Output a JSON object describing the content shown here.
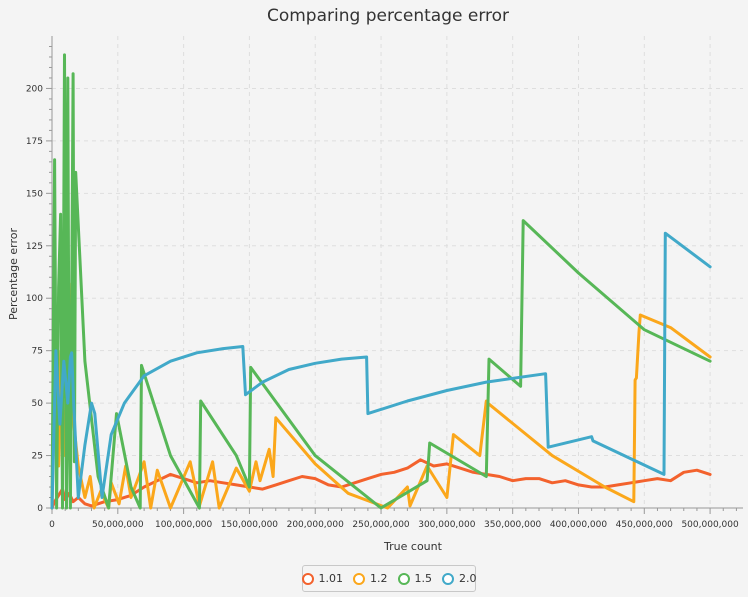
{
  "chart_data": {
    "type": "line",
    "title": "Comparing percentage error",
    "xlabel": "True count",
    "ylabel": "Percentage  error",
    "xlim": [
      0,
      525000000
    ],
    "ylim": [
      0,
      225
    ],
    "x_ticks": [
      0,
      50000000,
      100000000,
      150000000,
      200000000,
      250000000,
      300000000,
      350000000,
      400000000,
      450000000,
      500000000
    ],
    "x_tick_labels": [
      "0",
      "50,000,000",
      "100,000,000",
      "150,000,000",
      "200,000,000",
      "250,000,000",
      "300,000,000",
      "350,000,000",
      "400,000,000",
      "450,000,000",
      "500,000,000"
    ],
    "y_ticks": [
      0,
      25,
      50,
      75,
      100,
      125,
      150,
      175,
      200
    ],
    "y_tick_labels": [
      "0",
      "25",
      "50",
      "75",
      "100",
      "125",
      "150",
      "175",
      "200"
    ],
    "grid": true,
    "legend_position": "bottom",
    "series": [
      {
        "name": "1.01",
        "color": "#f3622d",
        "x": [
          0,
          2000000,
          5000000,
          8000000,
          10000000,
          13000000,
          16000000,
          20000000,
          25000000,
          30000000,
          40000000,
          50000000,
          60000000,
          70000000,
          80000000,
          90000000,
          100000000,
          110000000,
          120000000,
          130000000,
          140000000,
          150000000,
          160000000,
          170000000,
          180000000,
          190000000,
          200000000,
          210000000,
          220000000,
          230000000,
          240000000,
          250000000,
          260000000,
          270000000,
          280000000,
          290000000,
          300000000,
          310000000,
          320000000,
          330000000,
          340000000,
          350000000,
          360000000,
          370000000,
          380000000,
          390000000,
          400000000,
          410000000,
          420000000,
          430000000,
          440000000,
          450000000,
          460000000,
          470000000,
          480000000,
          490000000,
          500000000
        ],
        "y": [
          0,
          3,
          6,
          9,
          4,
          7,
          3,
          5,
          2,
          1,
          3,
          4,
          6,
          10,
          13,
          16,
          14,
          12,
          13,
          12,
          11,
          10,
          9,
          11,
          13,
          15,
          14,
          11,
          10,
          12,
          14,
          16,
          17,
          19,
          23,
          20,
          21,
          19,
          17,
          16,
          15,
          13,
          14,
          14,
          12,
          13,
          11,
          10,
          10,
          11,
          12,
          13,
          14,
          13,
          17,
          18,
          16
        ]
      },
      {
        "name": "1.2",
        "color": "#fba71b",
        "x": [
          0,
          2000000,
          5000000,
          7000000,
          9000000,
          11000000,
          13000000,
          15000000,
          16500000,
          20000000,
          25000000,
          29000000,
          32000000,
          37000000,
          43000000,
          45000000,
          51000000,
          56000000,
          60000000,
          66000000,
          70000000,
          75000000,
          80000000,
          90000000,
          105000000,
          112000000,
          122000000,
          127000000,
          140000000,
          150000000,
          155000000,
          158000000,
          165000000,
          168000000,
          170000000,
          200000000,
          225000000,
          255000000,
          270000000,
          272000000,
          285000000,
          300000000,
          305000000,
          325000000,
          330000000,
          331000000,
          380000000,
          420000000,
          442000000,
          443000000,
          444000000,
          446000000,
          447000000,
          470000000,
          500000000
        ],
        "y": [
          0,
          60,
          20,
          75,
          25,
          55,
          30,
          107,
          40,
          20,
          5,
          15,
          0,
          8,
          0,
          12,
          2,
          20,
          5,
          15,
          22,
          0,
          18,
          0,
          22,
          1,
          22,
          0,
          19,
          8,
          22,
          13,
          28,
          15,
          43,
          21,
          7,
          0,
          10,
          1,
          20,
          5,
          35,
          25,
          51,
          50,
          25,
          10,
          3,
          61,
          62,
          84,
          92,
          86,
          72
        ]
      },
      {
        "name": "1.5",
        "color": "#57b757",
        "x": [
          0,
          2000000,
          3500000,
          5000000,
          6500000,
          8000000,
          9500000,
          11000000,
          12000000,
          13000000,
          14000000,
          16000000,
          17000000,
          18000000,
          25000000,
          35000000,
          43000000,
          49000000,
          60000000,
          67000000,
          68000000,
          90000000,
          112000000,
          113000000,
          140000000,
          150000000,
          151000000,
          200000000,
          250000000,
          285000000,
          287000000,
          330000000,
          332000000,
          356000000,
          358000000,
          400000000,
          450000000,
          500000000
        ],
        "y": [
          0,
          166,
          0,
          105,
          140,
          0,
          216,
          0,
          205,
          40,
          0,
          207,
          22,
          160,
          70,
          15,
          0,
          45,
          10,
          0,
          68,
          25,
          0,
          51,
          25,
          10,
          67,
          25,
          0,
          13,
          31,
          15,
          71,
          58,
          137,
          112,
          85,
          70
        ]
      },
      {
        "name": "2.0",
        "color": "#41a9c9",
        "x": [
          0,
          3000000,
          6000000,
          9000000,
          12000000,
          14000000,
          15000000,
          16500000,
          20000000,
          25000000,
          30000000,
          32500000,
          38000000,
          45000000,
          55000000,
          70000000,
          90000000,
          110000000,
          130000000,
          145000000,
          147000000,
          160000000,
          180000000,
          200000000,
          220000000,
          239000000,
          240000000,
          270000000,
          300000000,
          330000000,
          375000000,
          377000000,
          410000000,
          411000000,
          465000000,
          466000000,
          500000000
        ],
        "y": [
          0,
          75,
          40,
          70,
          50,
          72,
          74,
          50,
          5,
          30,
          50,
          45,
          5,
          35,
          50,
          63,
          70,
          74,
          76,
          77,
          54,
          60,
          66,
          69,
          71,
          72,
          45,
          51,
          56,
          60,
          64,
          29,
          34,
          32,
          16,
          131,
          115
        ]
      }
    ]
  }
}
